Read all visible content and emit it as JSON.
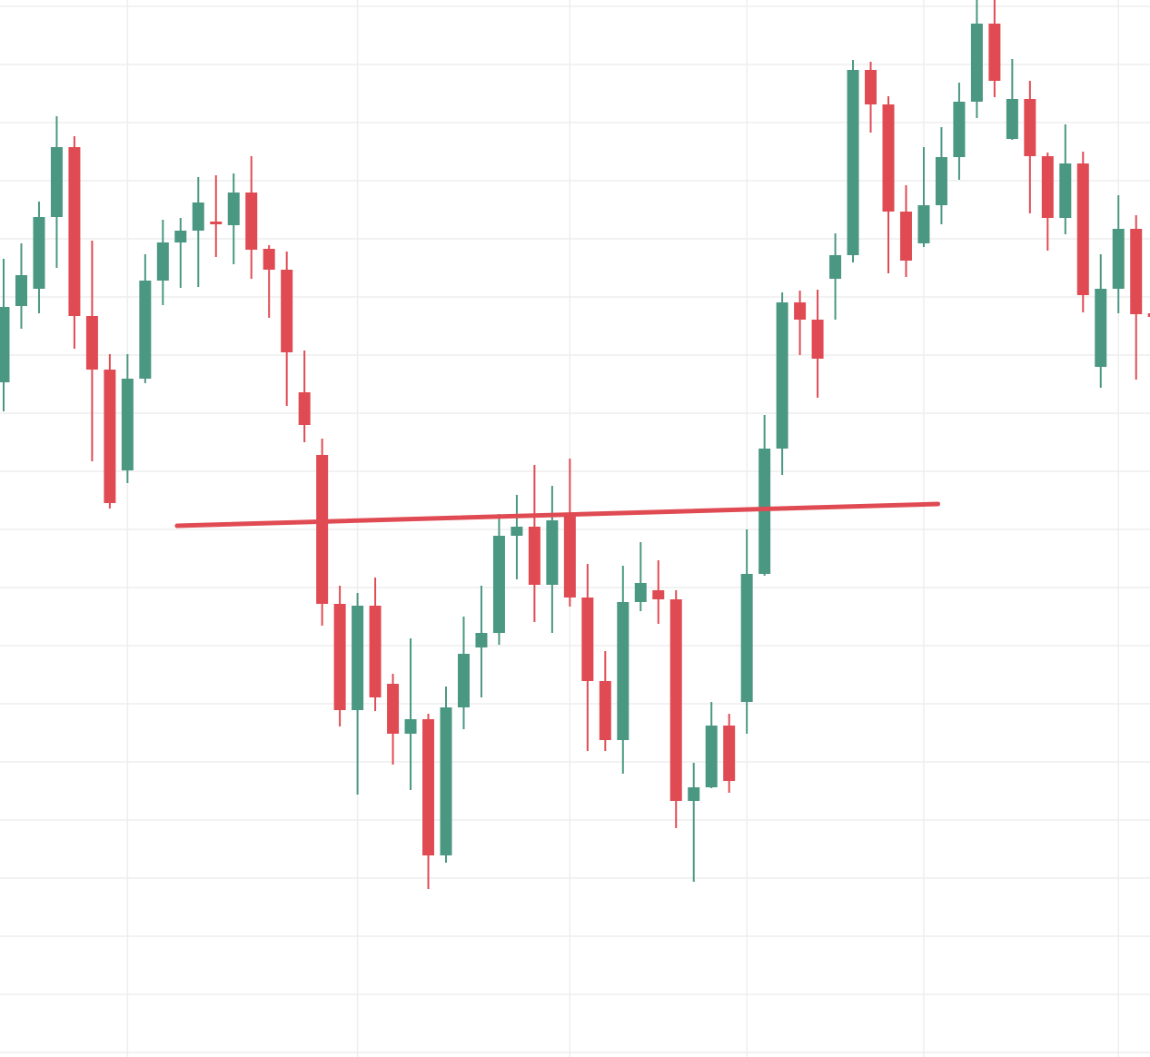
{
  "chart_data": {
    "type": "candlestick",
    "title": "",
    "xlabel": "",
    "ylabel": "",
    "ylim": [
      0,
      116.4
    ],
    "grid": true,
    "grid_y_step": 6.4,
    "grid_y_start": 0.5,
    "grid_x_candles": [
      7,
      20,
      32,
      42,
      52,
      63
    ],
    "colors": {
      "up": "#4a9782",
      "down": "#e04b53",
      "trendline": "#e04b53",
      "grid": "#eeeeee",
      "background": "#ffffff"
    },
    "candles": [
      [
        74.3,
        87.9,
        71.1,
        82.6
      ],
      [
        82.7,
        89.6,
        80.2,
        86.1
      ],
      [
        84.6,
        94.2,
        81.9,
        92.5
      ],
      [
        92.5,
        103.6,
        86.9,
        100.2
      ],
      [
        100.2,
        101.4,
        78.0,
        81.6
      ],
      [
        81.6,
        89.9,
        65.6,
        75.7
      ],
      [
        75.7,
        77.4,
        60.4,
        61.0
      ],
      [
        64.6,
        77.4,
        63.2,
        74.7
      ],
      [
        74.7,
        88.4,
        74.2,
        85.5
      ],
      [
        85.5,
        92.2,
        82.8,
        89.7
      ],
      [
        89.7,
        92.4,
        84.7,
        91.0
      ],
      [
        91.0,
        96.9,
        84.8,
        94.1
      ],
      [
        92.0,
        97.1,
        88.1,
        91.7
      ],
      [
        91.6,
        97.3,
        87.3,
        95.2
      ],
      [
        95.2,
        99.2,
        85.7,
        88.9
      ],
      [
        89.0,
        89.4,
        81.4,
        86.7
      ],
      [
        86.7,
        88.7,
        71.7,
        77.6
      ],
      [
        73.2,
        77.8,
        67.7,
        69.6
      ],
      [
        66.3,
        68.1,
        47.5,
        49.9
      ],
      [
        49.9,
        51.9,
        36.4,
        38.2
      ],
      [
        38.2,
        51.1,
        28.9,
        49.7
      ],
      [
        49.7,
        52.8,
        38.1,
        39.6
      ],
      [
        41.1,
        42.2,
        32.2,
        35.6
      ],
      [
        35.6,
        46.1,
        29.4,
        37.2
      ],
      [
        37.2,
        37.8,
        18.5,
        22.2
      ],
      [
        22.2,
        40.8,
        21.4,
        38.5
      ],
      [
        38.5,
        48.5,
        36.1,
        44.4
      ],
      [
        45.1,
        51.9,
        39.6,
        46.7
      ],
      [
        46.7,
        59.8,
        45.4,
        57.4
      ],
      [
        57.4,
        61.9,
        52.6,
        58.4
      ],
      [
        58.4,
        65.2,
        47.9,
        52.0
      ],
      [
        52.0,
        62.9,
        46.7,
        59.1
      ],
      [
        59.7,
        65.9,
        49.6,
        50.6
      ],
      [
        50.6,
        54.3,
        33.7,
        41.4
      ],
      [
        41.4,
        44.7,
        33.7,
        34.9
      ],
      [
        34.9,
        54.1,
        31.2,
        50.1
      ],
      [
        50.1,
        56.7,
        49.1,
        52.2
      ],
      [
        51.4,
        54.7,
        47.7,
        50.4
      ],
      [
        50.4,
        51.4,
        25.2,
        28.2
      ],
      [
        28.2,
        32.4,
        19.3,
        29.7
      ],
      [
        29.7,
        39.1,
        29.6,
        36.5
      ],
      [
        36.5,
        37.8,
        29.1,
        30.4
      ],
      [
        39.1,
        58.1,
        35.6,
        53.2
      ],
      [
        53.2,
        70.7,
        53.0,
        67.0
      ],
      [
        67.0,
        84.2,
        64.1,
        83.1
      ],
      [
        83.1,
        84.4,
        77.3,
        81.2
      ],
      [
        81.2,
        84.5,
        72.6,
        76.9
      ],
      [
        85.7,
        90.7,
        81.2,
        88.3
      ],
      [
        88.3,
        109.8,
        87.5,
        108.7
      ],
      [
        108.7,
        109.6,
        101.8,
        104.9
      ],
      [
        104.9,
        105.8,
        86.3,
        93.1
      ],
      [
        93.1,
        96.0,
        85.9,
        87.7
      ],
      [
        89.6,
        100.2,
        89.2,
        93.8
      ],
      [
        93.8,
        102.4,
        91.7,
        99.1
      ],
      [
        99.1,
        107.3,
        96.6,
        105.2
      ],
      [
        105.2,
        116.4,
        103.4,
        113.8
      ],
      [
        113.8,
        116.4,
        105.7,
        107.5
      ],
      [
        101.1,
        109.9,
        101.0,
        105.5
      ],
      [
        105.5,
        107.5,
        92.9,
        99.2
      ],
      [
        99.2,
        99.6,
        88.8,
        92.4
      ],
      [
        92.4,
        102.7,
        90.6,
        98.4
      ],
      [
        98.4,
        99.7,
        82.0,
        83.9
      ],
      [
        76.0,
        88.4,
        73.7,
        84.6
      ],
      [
        84.6,
        94.9,
        81.9,
        91.2
      ],
      [
        91.2,
        92.7,
        74.6,
        81.8
      ],
      [
        81.9,
        88.4,
        76.2,
        81.5
      ]
    ],
    "candle_fields": [
      "open",
      "high",
      "low",
      "close"
    ],
    "trendline": {
      "from": {
        "candle": 9.8,
        "price": 58.5
      },
      "to": {
        "candle": 52.8,
        "price": 60.9
      }
    }
  }
}
